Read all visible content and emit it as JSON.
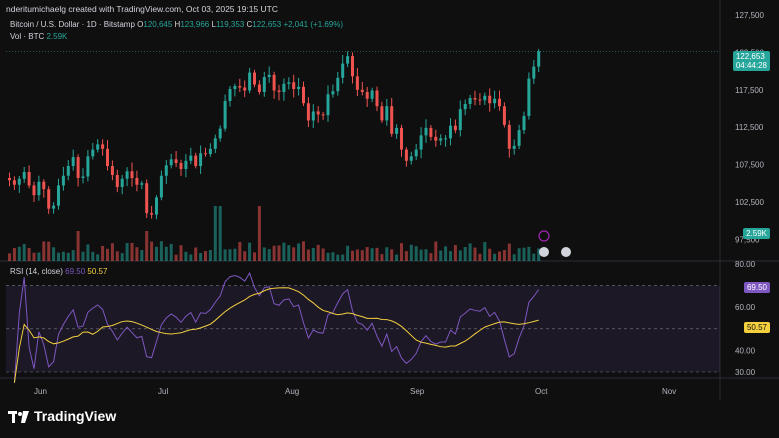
{
  "header": "nderitumichaelg created with TradingView.com, Oct 03, 2025 19:15 UTC",
  "legend": {
    "symbol": "Bitcoin / U.S. Dollar · 1D · Bitstamp",
    "open_label": "O",
    "open": "120,645",
    "high_label": "H",
    "high": "123,966",
    "low_label": "L",
    "low": "119,353",
    "close_label": "C",
    "close": "122,653",
    "change": "+2,041 (+1.69%)"
  },
  "volume": {
    "label": "Vol · BTC",
    "value": "2.59K"
  },
  "rsi": {
    "label": "RSI (14, close)",
    "value": "69.50",
    "ma": "50.57"
  },
  "badges": {
    "price": "122,653",
    "countdown": "04:44:28",
    "vol": "2.59K",
    "rsi": "69.50",
    "rsi_ma": "50.57"
  },
  "footer": {
    "brand": "TradingView"
  },
  "colors": {
    "up": "#26a69a",
    "down": "#ef5350",
    "rsi_line": "#7e57c2",
    "rsi_ma": "#f4d03f",
    "bg": "#0f0f0f"
  },
  "chart_data": [
    {
      "type": "candlestick",
      "y_ticks": [
        "127,500",
        "122,500",
        "117,500",
        "112,500",
        "107,500",
        "102,500",
        "97,500"
      ],
      "x_ticks": [
        "Jun",
        "Jul",
        "Aug",
        "Sep",
        "Oct",
        "Nov"
      ],
      "ylim": [
        95000,
        127500
      ],
      "last_price": 122653,
      "close": [
        105400,
        104800,
        105600,
        106500,
        104700,
        103400,
        105200,
        104200,
        101600,
        102000,
        104700,
        106000,
        107300,
        108500,
        105700,
        105900,
        108600,
        109500,
        110200,
        109600,
        107300,
        106100,
        104500,
        105600,
        106600,
        105700,
        104800,
        105000,
        101000,
        100800,
        103100,
        106000,
        107400,
        108200,
        107700,
        106900,
        108000,
        108700,
        107300,
        109000,
        108900,
        109600,
        111000,
        112300,
        116000,
        117600,
        118000,
        117800,
        117400,
        119800,
        118200,
        117200,
        119200,
        119500,
        117400,
        117200,
        118300,
        118500,
        117600,
        117900,
        115700,
        113400,
        114600,
        114200,
        114100,
        116900,
        117300,
        119100,
        121000,
        122000,
        119300,
        117500,
        117200,
        116300,
        117400,
        115300,
        113400,
        115300,
        111600,
        112400,
        109500,
        108000,
        108600,
        109500,
        111400,
        112400,
        111200,
        110700,
        111000,
        111000,
        112700,
        112100,
        114900,
        115600,
        116400,
        116200,
        116100,
        116700,
        115700,
        116300,
        115300,
        112800,
        109600,
        110000,
        112100,
        114000,
        119000,
        120600,
        122653
      ]
    },
    {
      "type": "line",
      "name": "RSI (14, close)",
      "ylim": [
        30,
        80
      ],
      "y_ticks": [
        "80.00",
        "60.00",
        "40.00",
        "30.00"
      ],
      "levels": [
        70,
        50,
        30
      ]
    }
  ]
}
